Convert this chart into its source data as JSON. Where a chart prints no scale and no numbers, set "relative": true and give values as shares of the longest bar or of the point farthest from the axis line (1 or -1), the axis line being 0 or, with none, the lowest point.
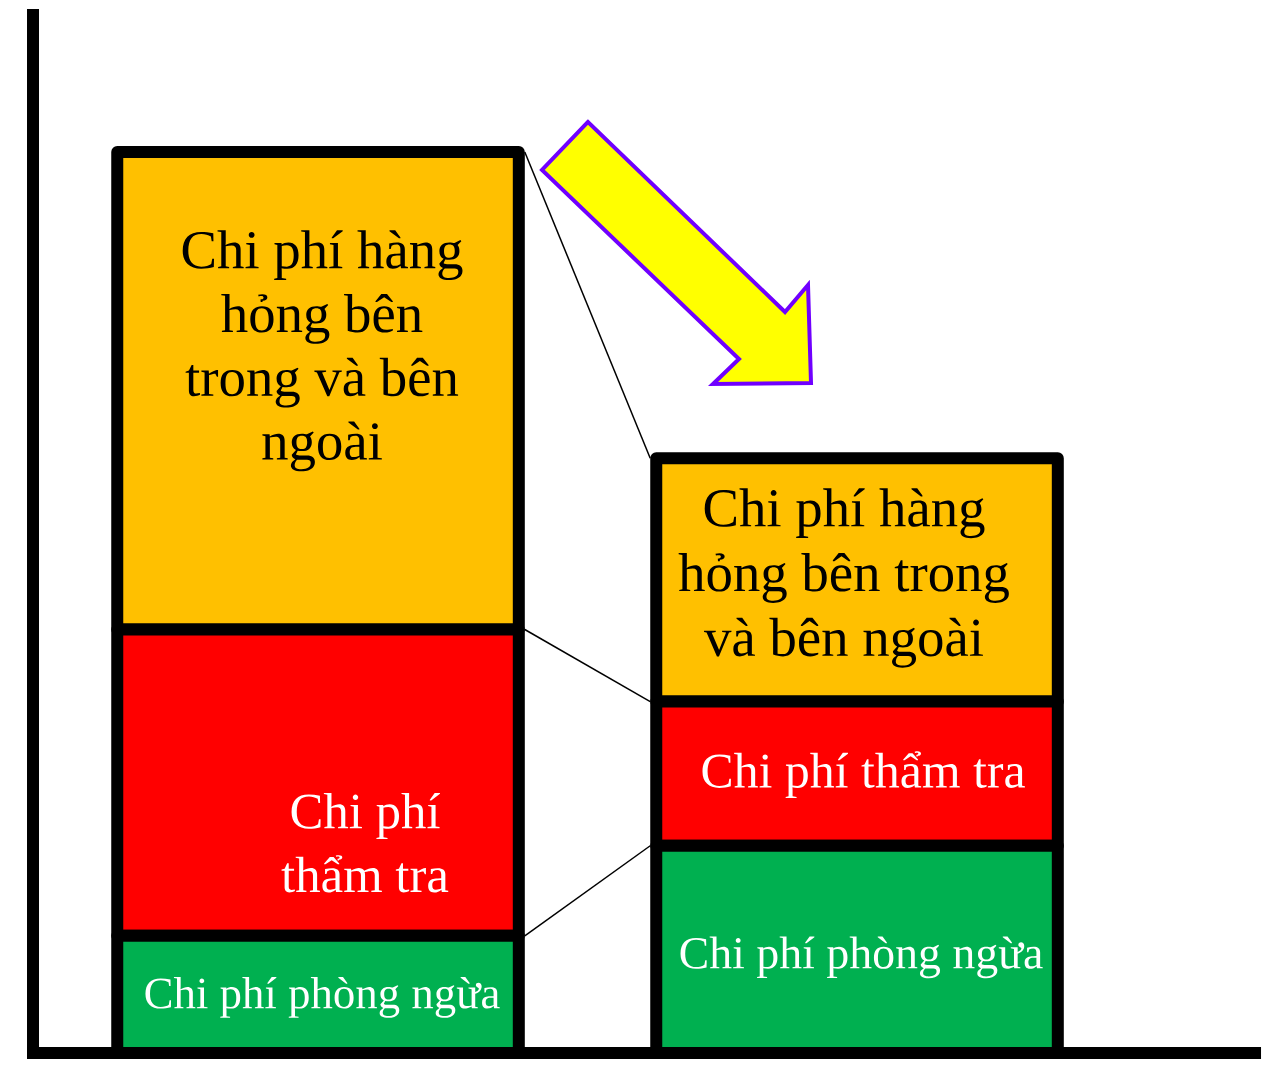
{
  "chart_data": {
    "type": "bar",
    "stacked": true,
    "relative": true,
    "categories": [
      null,
      null
    ],
    "series": [
      {
        "name": "Chi phí phòng ngừa",
        "color": "#00b050",
        "values": [
          0.13,
          0.23
        ]
      },
      {
        "name": "Chi phí thẩm tra",
        "color": "#ff0000",
        "values": [
          0.34,
          0.16
        ]
      },
      {
        "name": "Chi phí hàng hỏng bên trong và bên ngoài",
        "color": "#ffc000",
        "values": [
          0.53,
          0.27
        ]
      }
    ]
  }
}
